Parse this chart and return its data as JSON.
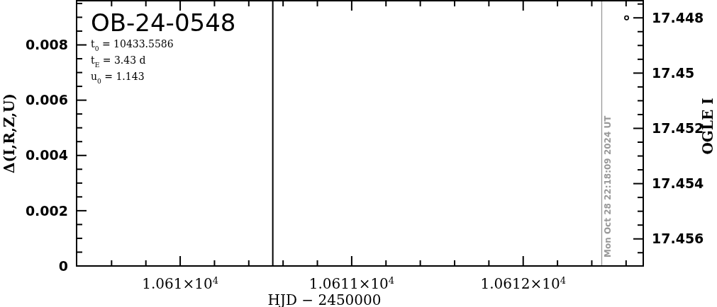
{
  "chart_data": {
    "type": "scatter",
    "title": "OB-24-0548",
    "xlabel": "HJD − 2450000",
    "ylabel": "Δ(I,R,Z,U)",
    "y2label": "OGLE I",
    "annotations": [
      "t$_{0}$ = 10433.5586",
      "t$_{E}$ = 3.43 d",
      "u$_{0}$ = 1.143",
      "Mon Oct 28 22:18:09 2024 UT"
    ],
    "xlim": [
      10609.396,
      10612.7
    ],
    "xticks": [
      {
        "value": 10609.6,
        "label": null
      },
      {
        "value": 10609.8,
        "label": null
      },
      {
        "value": 10610,
        "label": "1.061×10$^{4}$"
      },
      {
        "value": 10610.2,
        "label": null
      },
      {
        "value": 10610.4,
        "label": null
      },
      {
        "value": 10610.6,
        "label": null
      },
      {
        "value": 10610.8,
        "label": null
      },
      {
        "value": 10611,
        "label": "1.0611×10$^{4}$"
      },
      {
        "value": 10611.2,
        "label": null
      },
      {
        "value": 10611.4,
        "label": null
      },
      {
        "value": 10611.6,
        "label": null
      },
      {
        "value": 10611.8,
        "label": null
      },
      {
        "value": 10612,
        "label": "1.0612×10$^{4}$"
      },
      {
        "value": 10612.2,
        "label": null
      },
      {
        "value": 10612.4,
        "label": null
      },
      {
        "value": 10612.6,
        "label": null
      }
    ],
    "ylim": [
      0,
      0.0096
    ],
    "yticks": [
      0,
      {
        "value": 0.0005,
        "label": null
      },
      {
        "value": 0.001,
        "label": null
      },
      {
        "value": 0.0015,
        "label": null
      },
      0.002,
      {
        "value": 0.0025,
        "label": null
      },
      {
        "value": 0.003,
        "label": null
      },
      {
        "value": 0.0035,
        "label": null
      },
      0.004,
      {
        "value": 0.0045,
        "label": null
      },
      {
        "value": 0.005,
        "label": null
      },
      {
        "value": 0.0055,
        "label": null
      },
      0.006,
      {
        "value": 0.0065,
        "label": null
      },
      {
        "value": 0.007,
        "label": null
      },
      {
        "value": 0.0075,
        "label": null
      },
      0.008,
      {
        "value": 0.0085,
        "label": null
      },
      {
        "value": 0.009,
        "label": null
      },
      {
        "value": 0.0095,
        "label": null
      }
    ],
    "y2lim": [
      17.45698,
      17.44738
    ],
    "y2ticks": [
      {
        "value": 17.4475,
        "label": null
      },
      17.448,
      {
        "value": 17.4485,
        "label": null
      },
      {
        "value": 17.449,
        "label": null
      },
      {
        "value": 17.4495,
        "label": null
      },
      17.45,
      {
        "value": 17.4505,
        "label": null
      },
      {
        "value": 17.451,
        "label": null
      },
      {
        "value": 17.4515,
        "label": null
      },
      17.452,
      {
        "value": 17.4525,
        "label": null
      },
      {
        "value": 17.453,
        "label": null
      },
      {
        "value": 17.4535,
        "label": null
      },
      17.454,
      {
        "value": 17.4545,
        "label": null
      },
      {
        "value": 17.455,
        "label": null
      },
      {
        "value": 17.4555,
        "label": null
      },
      17.456,
      {
        "value": 17.4565,
        "label": null
      }
    ],
    "ref_lines": [
      {
        "axis": "x",
        "value": 10610.54,
        "label": null,
        "color": "#000000"
      },
      {
        "axis": "x",
        "value": 10612.458,
        "label": null,
        "color": "#999999"
      }
    ],
    "series": [
      {
        "axis": "y2",
        "color": "#000000",
        "marker": "circle",
        "x": [
          10612.603
        ],
        "values": [
          17.448
        ]
      }
    ],
    "grid": false
  }
}
